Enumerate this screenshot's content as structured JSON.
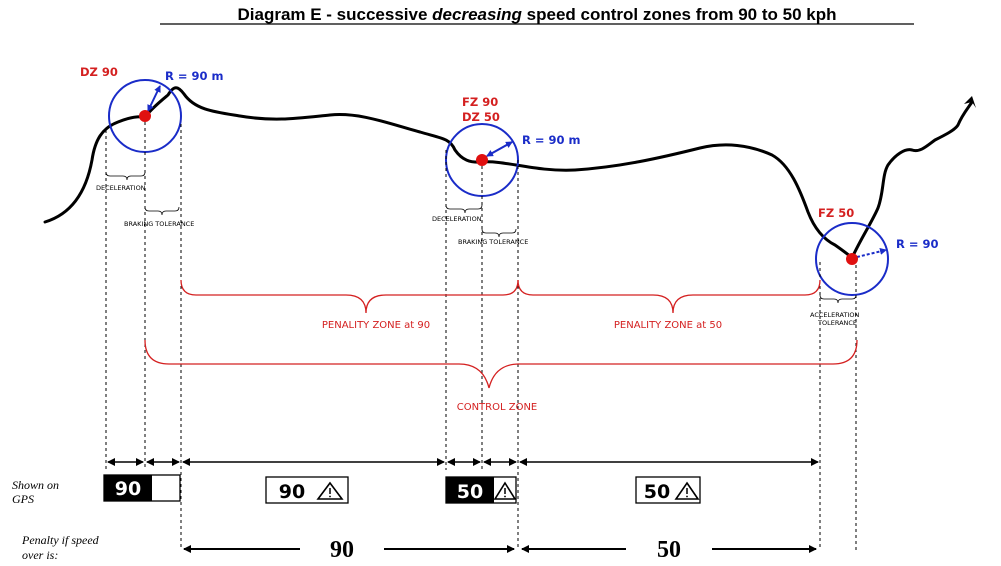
{
  "title": {
    "prefix": "Diagram E - successive ",
    "emphasis": "decreasing",
    "suffix": " speed control zones from 90 to 50 kph"
  },
  "points": {
    "dz90": "DZ 90",
    "fz90": "FZ 90",
    "dz50": "DZ 50",
    "fz50": "FZ 50"
  },
  "radii": {
    "r1": "R = 90 m",
    "r2": "R = 90 m",
    "r3": "R = 90"
  },
  "small_labels": {
    "deceleration_1": "DECELERATION",
    "braking_tolerance_1": "BRAKING  TOLERANCE",
    "deceleration_2": "DECELERATION",
    "braking_tolerance_2": "BRAKING  TOLERANCE",
    "acceleration_line1": "ACCELERATION",
    "acceleration_line2": "TOLERANCE"
  },
  "zones": {
    "penalty_90": "PENALITY ZONE at 90",
    "penalty_50": "PENALITY ZONE at 50",
    "control": "CONTROL ZONE"
  },
  "gps": {
    "label_line1": "Shown on",
    "label_line2": "GPS",
    "sign1": "90",
    "sign2": "90",
    "sign3": "50",
    "sign4": "50"
  },
  "penalty": {
    "label_line1": "Penalty if speed",
    "label_line2": "over is:",
    "value1": "90",
    "value2": "50"
  },
  "colors": {
    "red": "#d42020",
    "blue": "#1a2cc8",
    "black": "#000000"
  }
}
